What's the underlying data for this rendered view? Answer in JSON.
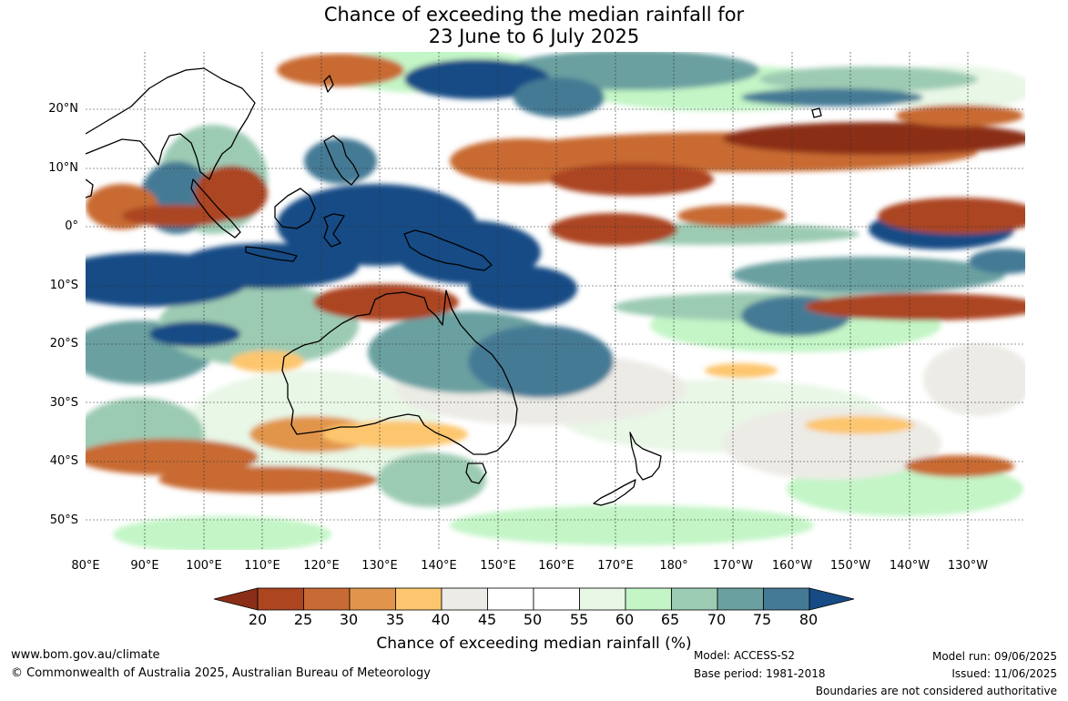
{
  "title": {
    "line1": "Chance of exceeding the median rainfall for",
    "line2": "23 June to 6 July 2025"
  },
  "map": {
    "projection": "equirectangular",
    "lon_range_east_degrees": [
      80,
      250
    ],
    "lat_range": [
      -55,
      30
    ],
    "grid_lines": true,
    "lat_labels": [
      "20°N",
      "10°N",
      "0°",
      "10°S",
      "20°S",
      "30°S",
      "40°S",
      "50°S"
    ],
    "lon_labels": [
      "80°E",
      "90°E",
      "100°E",
      "110°E",
      "120°E",
      "130°E",
      "140°E",
      "150°E",
      "160°E",
      "170°E",
      "180°",
      "170°W",
      "160°W",
      "150°W",
      "140°W",
      "130°W"
    ],
    "features": [
      {
        "name": "Indonesian archipelago to Coral Sea",
        "category": "75-80",
        "color": "#1b4e82"
      },
      {
        "name": "Equatorial central Pacific",
        "category": "20-25",
        "color": "#a8431e"
      },
      {
        "name": "North Pacific 10-20N",
        "category": "20-25",
        "color": "#a8431e"
      },
      {
        "name": "South Indian Ocean 40S",
        "category": "25-30",
        "color": "#c4652f"
      },
      {
        "name": "Northern Australia",
        "category": "25-30",
        "color": "#c4652f"
      }
    ]
  },
  "colorbar": {
    "label": "Chance of exceeding median rainfall (%)",
    "ticks": [
      "20",
      "25",
      "30",
      "35",
      "40",
      "45",
      "50",
      "55",
      "60",
      "65",
      "70",
      "75",
      "80"
    ],
    "colors": [
      "#8b2e18",
      "#ac4520",
      "#c86a33",
      "#e1954c",
      "#fdc66e",
      "#ecebe6",
      "#ffffff",
      "#ffffff",
      "#e8f7e6",
      "#c3f5c6",
      "#9ccbb3",
      "#6ba0a0",
      "#447a95",
      "#174b85"
    ]
  },
  "footer": {
    "website": "www.bom.gov.au/climate",
    "copyright": "© Commonwealth of Australia 2025, Australian Bureau of Meteorology",
    "model": "Model: ACCESS-S2",
    "base_period": "Base period: 1981-2018",
    "model_run": "Model run: 09/06/2025",
    "issued": "Issued: 11/06/2025",
    "disclaimer": "Boundaries are not considered authoritative"
  }
}
